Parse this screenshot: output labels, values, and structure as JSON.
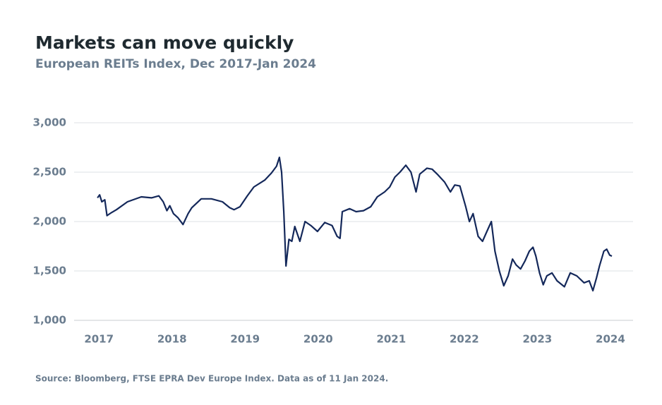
{
  "chart_data": {
    "type": "line",
    "title": "Markets can move quickly",
    "subtitle": "European REITs Index, Dec 2017-Jan 2024",
    "source": "Source: Bloomberg, FTSE EPRA Dev Europe Index. Data as of 11 Jan 2024.",
    "xlim": [
      2016.66,
      2024.31
    ],
    "xticks": [
      2017,
      2018,
      2019,
      2020,
      2021,
      2022,
      2023,
      2024
    ],
    "ylim": [
      1000,
      3000
    ],
    "yticks": [
      {
        "value": 1000,
        "label": "1,000"
      },
      {
        "value": 1500,
        "label": "1,500"
      },
      {
        "value": 2000,
        "label": "2,000"
      },
      {
        "value": 2500,
        "label": "2,500"
      },
      {
        "value": 3000,
        "label": "3,000"
      }
    ],
    "grid": true,
    "series": [
      {
        "name": "European REITs Index",
        "color": "#14285a",
        "x": [
          2016.98,
          2017.01,
          2017.04,
          2017.08,
          2017.11,
          2017.17,
          2017.24,
          2017.39,
          2017.58,
          2017.72,
          2017.82,
          2017.88,
          2017.93,
          2017.97,
          2018.02,
          2018.08,
          2018.15,
          2018.22,
          2018.27,
          2018.4,
          2018.54,
          2018.69,
          2018.79,
          2018.85,
          2018.93,
          2019.03,
          2019.12,
          2019.27,
          2019.36,
          2019.43,
          2019.47,
          2019.5,
          2019.53,
          2019.56,
          2019.6,
          2019.64,
          2019.68,
          2019.75,
          2019.82,
          2019.9,
          2019.99,
          2020.09,
          2020.19,
          2020.26,
          2020.3,
          2020.33,
          2020.43,
          2020.52,
          2020.62,
          2020.72,
          2020.81,
          2020.91,
          2020.98,
          2021.05,
          2021.12,
          2021.2,
          2021.27,
          2021.34,
          2021.39,
          2021.49,
          2021.56,
          2021.63,
          2021.73,
          2021.81,
          2021.87,
          2021.94,
          2022.02,
          2022.07,
          2022.12,
          2022.19,
          2022.25,
          2022.31,
          2022.37,
          2022.42,
          2022.48,
          2022.54,
          2022.6,
          2022.66,
          2022.71,
          2022.77,
          2022.83,
          2022.89,
          2022.94,
          2022.98,
          2023.03,
          2023.08,
          2023.13,
          2023.2,
          2023.27,
          2023.37,
          2023.45,
          2023.54,
          2023.64,
          2023.71,
          2023.76,
          2023.81,
          2023.85,
          2023.91,
          2023.95,
          2023.99,
          2024.02
        ],
        "values": [
          2240,
          2270,
          2200,
          2220,
          2060,
          2090,
          2120,
          2200,
          2250,
          2240,
          2260,
          2200,
          2110,
          2160,
          2080,
          2040,
          1970,
          2080,
          2140,
          2230,
          2230,
          2200,
          2140,
          2120,
          2150,
          2260,
          2350,
          2420,
          2490,
          2560,
          2650,
          2500,
          2100,
          1550,
          1820,
          1800,
          1950,
          1800,
          2000,
          1960,
          1900,
          1990,
          1960,
          1850,
          1830,
          2100,
          2130,
          2100,
          2110,
          2150,
          2250,
          2300,
          2350,
          2450,
          2500,
          2570,
          2500,
          2300,
          2480,
          2540,
          2530,
          2480,
          2400,
          2300,
          2370,
          2360,
          2150,
          2000,
          2080,
          1850,
          1800,
          1900,
          2000,
          1700,
          1500,
          1350,
          1450,
          1620,
          1560,
          1520,
          1600,
          1700,
          1740,
          1650,
          1480,
          1360,
          1450,
          1480,
          1400,
          1340,
          1480,
          1450,
          1380,
          1400,
          1300,
          1430,
          1550,
          1700,
          1720,
          1660,
          1650
        ]
      }
    ]
  }
}
